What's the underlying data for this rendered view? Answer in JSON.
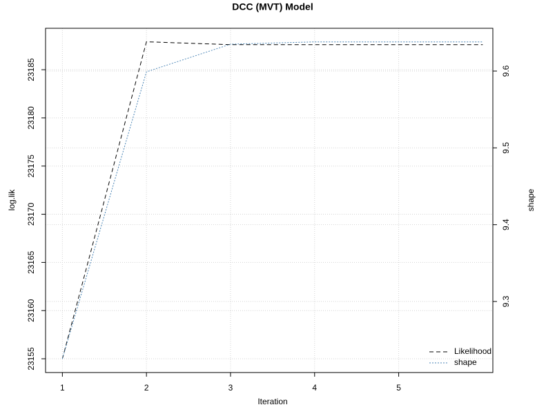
{
  "chart_data": {
    "type": "line",
    "title": "DCC (MVT) Model",
    "x_label": "Iteration",
    "y_label": "log.lik",
    "y2_label": "shape",
    "x": [
      1,
      2,
      3,
      4,
      5,
      6
    ],
    "series": [
      {
        "name": "Likelihood",
        "color": "#000000",
        "dash": "6,4",
        "values": [
          23155,
          23187.9,
          23187.6,
          23187.6,
          23187.6,
          23187.6
        ]
      },
      {
        "name": "shape",
        "color": "#4682b4",
        "dash": "2,2",
        "axis": "y2",
        "values": [
          9.2254,
          9.599,
          9.635,
          9.638,
          9.638,
          9.638
        ]
      }
    ],
    "xlim": [
      0.8,
      6.12
    ],
    "xticks": [
      1,
      2,
      3,
      4,
      5
    ],
    "ylim": [
      23153.57,
      23189.3
    ],
    "yticks": [
      23155,
      23160,
      23165,
      23170,
      23175,
      23180,
      23185
    ],
    "y2lim": [
      9.2075,
      9.6557
    ],
    "y2ticks": [
      9.3,
      9.4,
      9.5,
      9.6
    ],
    "grid": true,
    "legend": "bottom-right"
  }
}
